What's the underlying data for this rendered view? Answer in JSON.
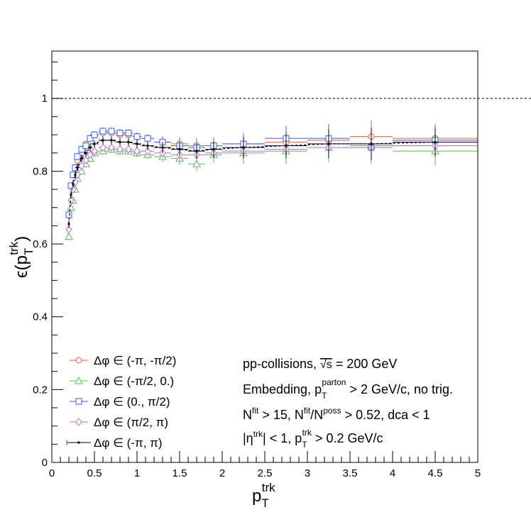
{
  "chart_data": {
    "type": "scatter",
    "xlim": [
      0,
      5
    ],
    "ylim": [
      0,
      1.13
    ],
    "xticks": [
      "0",
      "0.5",
      "1",
      "1.5",
      "2",
      "2.5",
      "3",
      "3.5",
      "4",
      "4.5",
      "5"
    ],
    "yticks": [
      "0",
      "0.2",
      "0.4",
      "0.6",
      "0.8",
      "1"
    ],
    "ylabel_main": "ϵ(p",
    "ylabel_sub": "T",
    "ylabel_sup": "trk",
    "ylabel_close": ")",
    "xlabel_main": "p",
    "xlabel_sub": "T",
    "xlabel_sup": "trk",
    "reference_line": 1.0,
    "legend": [
      {
        "prefix": "Δφ ∈ ",
        "range": "(-π, -π/2)"
      },
      {
        "prefix": "Δφ ∈ ",
        "range": "(-π/2, 0.)"
      },
      {
        "prefix": "Δφ ∈ ",
        "range": "(0., π/2)"
      },
      {
        "prefix": "Δφ ∈ ",
        "range": "(π/2, π)"
      },
      {
        "prefix": "Δφ ∈ ",
        "range": "(-π, π)"
      }
    ],
    "annotations": {
      "line1_a": "pp-collisions, ",
      "line1_sqrt": "√s",
      "line1_b": " = 200 GeV",
      "line2_a": "Embedding, p",
      "line2_sub": "T",
      "line2_sup": "parton",
      "line2_b": " > 2 GeV/c, no trig.",
      "line3_a": "N",
      "line3_sup1": "fit",
      "line3_b": " > 15, N",
      "line3_sup2": "fit",
      "line3_c": "/N",
      "line3_sup3": "poss",
      "line3_d": " > 0.52, dca < 1",
      "line4_a": "|η",
      "line4_sup1": "trk",
      "line4_b": "| < 1, p",
      "line4_sub": "T",
      "line4_sup2": "trk",
      "line4_c": " > 0.2 GeV/c"
    },
    "series": [
      {
        "color": "#e8603a",
        "marker": "circle",
        "x": [
          0.2,
          0.225,
          0.25,
          0.275,
          0.3,
          0.35,
          0.4,
          0.45,
          0.5,
          0.6,
          0.7,
          0.8,
          0.9,
          1.0,
          1.125,
          1.3,
          1.5,
          1.7,
          1.9,
          2.25,
          2.75,
          3.25,
          3.75,
          4.5
        ],
        "y": [
          0.68,
          0.76,
          0.79,
          0.81,
          0.83,
          0.85,
          0.875,
          0.89,
          0.9,
          0.905,
          0.905,
          0.9,
          0.9,
          0.895,
          0.89,
          0.88,
          0.875,
          0.87,
          0.87,
          0.875,
          0.88,
          0.885,
          0.895,
          0.89
        ],
        "xerr": [
          0.0125,
          0.0125,
          0.0125,
          0.0125,
          0.025,
          0.025,
          0.025,
          0.025,
          0.05,
          0.05,
          0.05,
          0.05,
          0.05,
          0.05,
          0.075,
          0.1,
          0.1,
          0.1,
          0.1,
          0.25,
          0.25,
          0.25,
          0.25,
          0.5
        ],
        "yerr": [
          0.01,
          0.01,
          0.01,
          0.01,
          0.01,
          0.01,
          0.01,
          0.01,
          0.01,
          0.01,
          0.01,
          0.01,
          0.01,
          0.012,
          0.012,
          0.015,
          0.018,
          0.02,
          0.022,
          0.03,
          0.035,
          0.04,
          0.045,
          0.04
        ]
      },
      {
        "color": "#5cb85c",
        "marker": "triangle",
        "x": [
          0.2,
          0.225,
          0.25,
          0.275,
          0.3,
          0.35,
          0.4,
          0.45,
          0.5,
          0.6,
          0.7,
          0.8,
          0.9,
          1.0,
          1.125,
          1.3,
          1.5,
          1.7,
          1.9,
          2.25,
          2.75,
          3.25,
          3.75,
          4.5
        ],
        "y": [
          0.62,
          0.7,
          0.72,
          0.75,
          0.78,
          0.8,
          0.82,
          0.835,
          0.85,
          0.855,
          0.86,
          0.855,
          0.855,
          0.85,
          0.845,
          0.84,
          0.835,
          0.82,
          0.845,
          0.85,
          0.855,
          0.865,
          0.87,
          0.855
        ],
        "xerr": [
          0.0125,
          0.0125,
          0.0125,
          0.0125,
          0.025,
          0.025,
          0.025,
          0.025,
          0.05,
          0.05,
          0.05,
          0.05,
          0.05,
          0.05,
          0.075,
          0.1,
          0.1,
          0.1,
          0.1,
          0.25,
          0.25,
          0.25,
          0.25,
          0.5
        ],
        "yerr": [
          0.01,
          0.01,
          0.01,
          0.01,
          0.01,
          0.01,
          0.01,
          0.01,
          0.01,
          0.01,
          0.01,
          0.01,
          0.01,
          0.012,
          0.012,
          0.015,
          0.018,
          0.02,
          0.022,
          0.03,
          0.035,
          0.04,
          0.045,
          0.04
        ]
      },
      {
        "color": "#3a5ee8",
        "marker": "square",
        "x": [
          0.2,
          0.225,
          0.25,
          0.275,
          0.3,
          0.35,
          0.4,
          0.45,
          0.5,
          0.6,
          0.7,
          0.8,
          0.9,
          1.0,
          1.125,
          1.3,
          1.5,
          1.7,
          1.9,
          2.25,
          2.75,
          3.25,
          3.75,
          4.5
        ],
        "y": [
          0.68,
          0.76,
          0.79,
          0.81,
          0.84,
          0.86,
          0.87,
          0.89,
          0.9,
          0.91,
          0.91,
          0.905,
          0.905,
          0.895,
          0.89,
          0.88,
          0.87,
          0.865,
          0.87,
          0.875,
          0.89,
          0.89,
          0.865,
          0.885
        ],
        "xerr": [
          0.0125,
          0.0125,
          0.0125,
          0.0125,
          0.025,
          0.025,
          0.025,
          0.025,
          0.05,
          0.05,
          0.05,
          0.05,
          0.05,
          0.05,
          0.075,
          0.1,
          0.1,
          0.1,
          0.1,
          0.25,
          0.25,
          0.25,
          0.25,
          0.5
        ],
        "yerr": [
          0.01,
          0.01,
          0.01,
          0.01,
          0.01,
          0.01,
          0.01,
          0.01,
          0.01,
          0.01,
          0.01,
          0.01,
          0.01,
          0.012,
          0.012,
          0.015,
          0.018,
          0.02,
          0.022,
          0.03,
          0.035,
          0.04,
          0.045,
          0.04
        ]
      },
      {
        "color": "#b86ad8",
        "marker": "diamond",
        "x": [
          0.2,
          0.225,
          0.25,
          0.275,
          0.3,
          0.35,
          0.4,
          0.45,
          0.5,
          0.6,
          0.7,
          0.8,
          0.9,
          1.0,
          1.125,
          1.3,
          1.5,
          1.7,
          1.9,
          2.25,
          2.75,
          3.25,
          3.75,
          4.5
        ],
        "y": [
          0.64,
          0.72,
          0.75,
          0.77,
          0.79,
          0.815,
          0.83,
          0.845,
          0.855,
          0.865,
          0.865,
          0.86,
          0.86,
          0.855,
          0.855,
          0.85,
          0.845,
          0.845,
          0.85,
          0.855,
          0.86,
          0.865,
          0.865,
          0.87
        ],
        "xerr": [
          0.0125,
          0.0125,
          0.0125,
          0.0125,
          0.025,
          0.025,
          0.025,
          0.025,
          0.05,
          0.05,
          0.05,
          0.05,
          0.05,
          0.05,
          0.075,
          0.1,
          0.1,
          0.1,
          0.1,
          0.25,
          0.25,
          0.25,
          0.25,
          0.5
        ],
        "yerr": [
          0.01,
          0.01,
          0.01,
          0.01,
          0.01,
          0.01,
          0.01,
          0.01,
          0.01,
          0.01,
          0.01,
          0.01,
          0.01,
          0.012,
          0.012,
          0.015,
          0.018,
          0.02,
          0.022,
          0.03,
          0.035,
          0.04,
          0.045,
          0.04
        ]
      },
      {
        "color": "#000000",
        "marker": "dot",
        "x": [
          0.2,
          0.225,
          0.25,
          0.275,
          0.3,
          0.35,
          0.4,
          0.45,
          0.5,
          0.6,
          0.7,
          0.8,
          0.9,
          1.0,
          1.125,
          1.3,
          1.5,
          1.7,
          1.9,
          2.25,
          2.75,
          3.25,
          3.75,
          4.5
        ],
        "y": [
          0.655,
          0.735,
          0.765,
          0.79,
          0.81,
          0.835,
          0.85,
          0.865,
          0.875,
          0.885,
          0.885,
          0.88,
          0.88,
          0.875,
          0.87,
          0.865,
          0.86,
          0.855,
          0.86,
          0.865,
          0.87,
          0.875,
          0.875,
          0.88
        ],
        "xerr": [
          0.0125,
          0.0125,
          0.0125,
          0.0125,
          0.025,
          0.025,
          0.025,
          0.025,
          0.05,
          0.05,
          0.05,
          0.05,
          0.05,
          0.05,
          0.075,
          0.1,
          0.1,
          0.1,
          0.1,
          0.25,
          0.25,
          0.25,
          0.25,
          0.5
        ],
        "yerr": [
          0.01,
          0.01,
          0.01,
          0.01,
          0.01,
          0.01,
          0.01,
          0.01,
          0.01,
          0.01,
          0.01,
          0.01,
          0.01,
          0.012,
          0.012,
          0.015,
          0.018,
          0.02,
          0.022,
          0.03,
          0.035,
          0.04,
          0.045,
          0.04
        ]
      }
    ]
  }
}
